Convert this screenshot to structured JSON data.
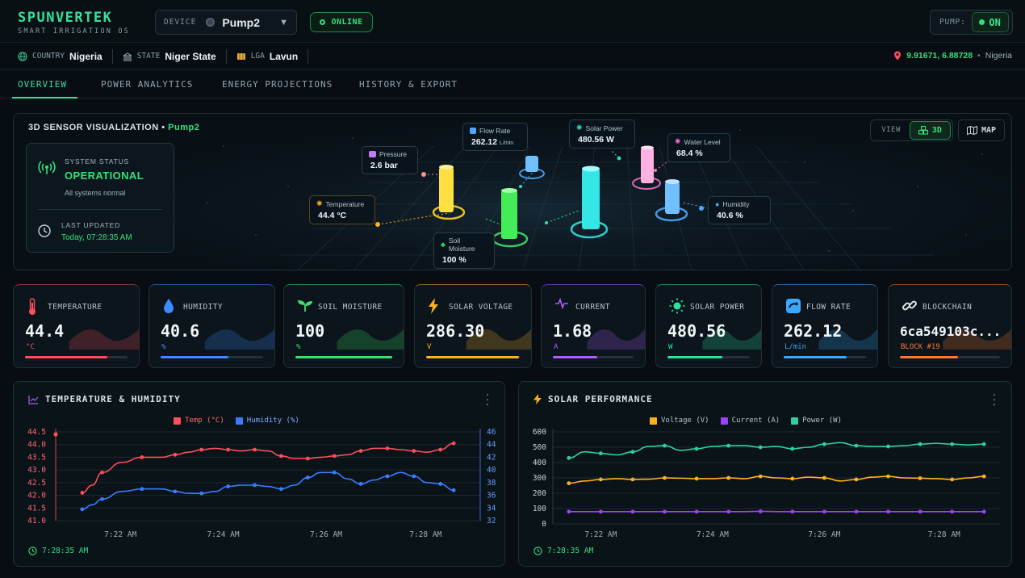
{
  "brand": {
    "name": "SPUNVERTEK",
    "subtitle": "SMART IRRIGATION OS"
  },
  "device": {
    "label": "DEVICE",
    "value": "Pump2"
  },
  "connection": {
    "status": "ONLINE"
  },
  "pump": {
    "label": "PUMP:",
    "state": "ON"
  },
  "location": {
    "country_label": "COUNTRY",
    "country": "Nigeria",
    "state_label": "STATE",
    "state": "Niger State",
    "lga_label": "LGA",
    "lga": "Lavun",
    "coordinates": "9.91671, 6.88728",
    "separator": "•",
    "coord_country": "Nigeria"
  },
  "tabs": [
    {
      "label": "OVERVIEW",
      "active": true
    },
    {
      "label": "POWER ANALYTICS"
    },
    {
      "label": "ENERGY PROJECTIONS"
    },
    {
      "label": "HISTORY & EXPORT"
    }
  ],
  "viz": {
    "title": "3D SENSOR VISUALIZATION",
    "bullet": "•",
    "pump": "Pump2",
    "status_label": "SYSTEM STATUS",
    "status_value": "OPERATIONAL",
    "status_note": "All systems normal",
    "updated_label": "LAST UPDATED",
    "updated_value": "Today, 07:28:35 AM",
    "view_label": "VIEW",
    "view_3d": "3D",
    "view_map": "MAP",
    "sensors": {
      "pressure": {
        "name": "Pressure",
        "value": "2.6 bar",
        "color": "#c27cf0"
      },
      "flow": {
        "name": "Flow Rate",
        "value": "262.12",
        "unit": "L/min",
        "color": "#4aa8ff"
      },
      "solar": {
        "name": "Solar Power",
        "value": "480.56 W",
        "color": "#2fe0b0"
      },
      "water": {
        "name": "Water Level",
        "value": "68.4 %",
        "color": "#f070c8"
      },
      "humidity": {
        "name": "Humidity",
        "value": "40.6 %",
        "color": "#4aa8ff"
      },
      "temperature": {
        "name": "Temperature",
        "value": "44.4 °C",
        "color": "#ffb020"
      },
      "soil": {
        "name": "Soil Moisture",
        "value": "100 %",
        "color": "#3ee06a"
      }
    }
  },
  "cards": [
    {
      "label": "TEMPERATURE",
      "value": "44.4",
      "unit": "°C",
      "color": "#ff4d5a",
      "level": 0.8,
      "icon": "thermometer-icon"
    },
    {
      "label": "HUMIDITY",
      "value": "40.6",
      "unit": "%",
      "color": "#3b8cff",
      "level": 0.66,
      "icon": "droplet-icon"
    },
    {
      "label": "SOIL MOISTURE",
      "value": "100",
      "unit": "%",
      "color": "#3ee06a",
      "level": 1.0,
      "icon": "sprout-icon"
    },
    {
      "label": "SOLAR VOLTAGE",
      "value": "286.30",
      "unit": "V",
      "color": "#ffb020",
      "level": 0.99,
      "icon": "lightning-icon"
    },
    {
      "label": "CURRENT",
      "value": "1.68",
      "unit": "A",
      "color": "#b05cff",
      "level": 0.55,
      "icon": "pulse-icon"
    },
    {
      "label": "SOLAR POWER",
      "value": "480.56",
      "unit": "W",
      "color": "#2fe0a0",
      "level": 0.67,
      "icon": "sun-icon"
    },
    {
      "label": "FLOW RATE",
      "value": "262.12",
      "unit": "L/min",
      "color": "#3ba8ff",
      "level": 0.76,
      "icon": "wave-icon"
    },
    {
      "label": "BLOCKCHAIN",
      "value": "6ca549103c...",
      "unit": "BLOCK #19",
      "color": "#ff7a2a",
      "level": 0.58,
      "icon": "link-icon"
    }
  ],
  "temp_chart": {
    "title": "TEMPERATURE & HUMIDITY",
    "timestamp": "7:28:35 AM",
    "colors": {
      "temp": "#ff4d5a",
      "humidity": "#3b7cff"
    }
  },
  "solar_chart": {
    "title": "SOLAR PERFORMANCE",
    "timestamp": "7:28:35 AM",
    "colors": {
      "voltage": "#ffb020",
      "current": "#a040ff",
      "power": "#2fd0a0"
    }
  },
  "chart_data": [
    {
      "type": "line",
      "title": "TEMPERATURE & HUMIDITY",
      "x_ticks": [
        "7:22 AM",
        "7:24 AM",
        "7:26 AM",
        "7:28 AM"
      ],
      "y_left_ticks": [
        "44.5",
        "44.0",
        "43.5",
        "43.0",
        "42.5",
        "42.0",
        "41.5",
        "41.0"
      ],
      "y_right_ticks": [
        "46",
        "44",
        "42",
        "40",
        "38",
        "36",
        "34",
        "32"
      ],
      "ylim_left": [
        41.0,
        44.5
      ],
      "ylim_right": [
        32,
        46
      ],
      "x": [
        0.4,
        0.55,
        0.7,
        1.0,
        1.3,
        1.6,
        1.8,
        2.0,
        2.2,
        2.4,
        2.6,
        2.8,
        3.0,
        3.2,
        3.4,
        3.6,
        3.8,
        4.0,
        4.2,
        4.4,
        4.6,
        4.8,
        5.0,
        5.2,
        5.4,
        5.6,
        5.8,
        6.0
      ],
      "series": [
        {
          "name": "Temp (°C)",
          "axis": "left",
          "values": [
            42.1,
            42.4,
            42.9,
            43.3,
            43.5,
            43.5,
            43.6,
            43.7,
            43.8,
            43.85,
            43.8,
            43.75,
            43.8,
            43.75,
            43.55,
            43.45,
            43.45,
            43.5,
            43.55,
            43.6,
            43.75,
            43.85,
            43.85,
            43.8,
            43.75,
            43.7,
            43.8,
            44.05
          ]
        },
        {
          "name": "Humidity (%)",
          "axis": "left_mapped",
          "values": [
            33.8,
            34.5,
            35.4,
            36.6,
            37.0,
            37.0,
            36.6,
            36.3,
            36.3,
            36.6,
            37.4,
            37.6,
            37.6,
            37.4,
            37.0,
            37.6,
            38.8,
            39.6,
            39.6,
            38.6,
            37.8,
            38.4,
            39.0,
            39.6,
            39.0,
            38.0,
            37.8,
            36.8
          ]
        }
      ]
    },
    {
      "type": "line",
      "title": "SOLAR PERFORMANCE",
      "x_ticks": [
        "7:22 AM",
        "7:24 AM",
        "7:26 AM",
        "7:28 AM"
      ],
      "y_ticks": [
        "600",
        "500",
        "400",
        "300",
        "200",
        "100",
        "0"
      ],
      "ylim": [
        0,
        600
      ],
      "x": [
        0.3,
        0.6,
        0.9,
        1.2,
        1.5,
        1.8,
        2.1,
        2.4,
        2.7,
        3.0,
        3.3,
        3.6,
        3.9,
        4.2,
        4.5,
        4.8,
        5.1,
        5.4,
        5.7,
        6.0,
        6.3,
        6.6,
        6.9,
        7.2,
        7.5,
        7.8,
        8.1
      ],
      "series": [
        {
          "name": "Voltage (V)",
          "values": [
            265,
            280,
            290,
            295,
            290,
            292,
            300,
            298,
            295,
            295,
            300,
            295,
            310,
            300,
            295,
            305,
            300,
            280,
            290,
            305,
            310,
            300,
            298,
            295,
            290,
            300,
            310
          ]
        },
        {
          "name": "Current (A)",
          "values": [
            80,
            80,
            80,
            80,
            80,
            80,
            80,
            80,
            80,
            80,
            80,
            80,
            82,
            80,
            80,
            80,
            80,
            80,
            80,
            80,
            80,
            80,
            80,
            80,
            80,
            80,
            80
          ]
        },
        {
          "name": "Power (W)",
          "values": [
            430,
            470,
            460,
            450,
            470,
            505,
            510,
            480,
            490,
            505,
            510,
            510,
            500,
            505,
            490,
            500,
            520,
            530,
            510,
            505,
            505,
            510,
            520,
            525,
            520,
            515,
            520
          ]
        }
      ]
    }
  ]
}
